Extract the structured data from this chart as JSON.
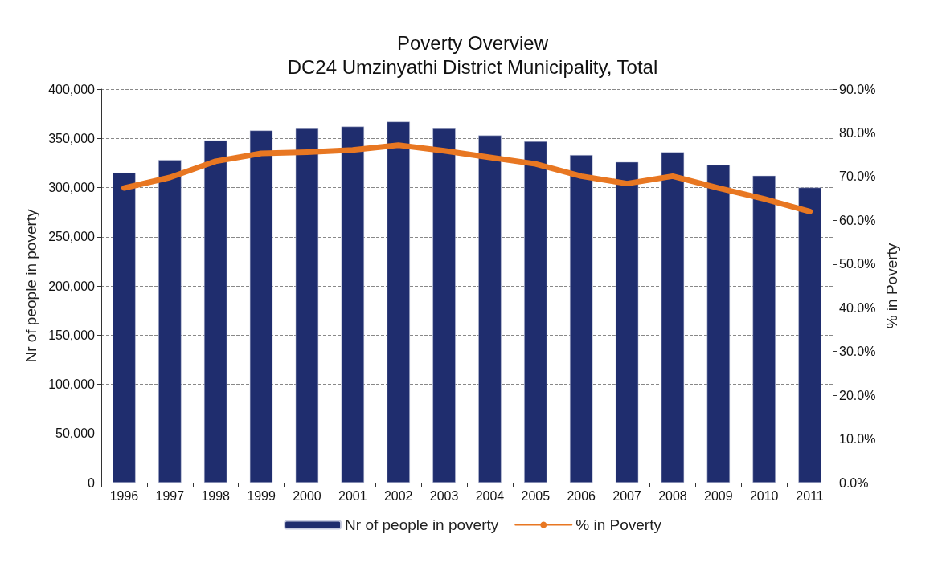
{
  "chart_data": {
    "type": "bar",
    "title": "Poverty Overview",
    "subtitle": "DC24 Umzinyathi District Municipality, Total",
    "ylabel": "Nr of people in poverty",
    "y2label": "% in Poverty",
    "categories": [
      "1996",
      "1997",
      "1998",
      "1999",
      "2000",
      "2001",
      "2002",
      "2003",
      "2004",
      "2005",
      "2006",
      "2007",
      "2008",
      "2009",
      "2010",
      "2011"
    ],
    "series": [
      {
        "name": "Nr of people in poverty",
        "color": "#1f2d6e",
        "values": [
          315000,
          328000,
          348000,
          358000,
          360000,
          362000,
          367000,
          360000,
          353000,
          347000,
          333000,
          326000,
          336000,
          323000,
          312000,
          300000
        ]
      },
      {
        "name": "% in Poverty",
        "type": "line",
        "axis": "y2",
        "color": "#e87722",
        "values": [
          67.4,
          69.8,
          73.5,
          75.3,
          75.6,
          76.1,
          77.2,
          75.9,
          74.4,
          72.9,
          70.1,
          68.4,
          70.1,
          67.4,
          64.9,
          62.0
        ]
      }
    ],
    "ylim": [
      0,
      400000
    ],
    "yticks": [
      {
        "value": 0,
        "label": "0"
      },
      {
        "value": 50000,
        "label": "50,000"
      },
      {
        "value": 100000,
        "label": "100,000"
      },
      {
        "value": 150000,
        "label": "150,000"
      },
      {
        "value": 200000,
        "label": "200,000"
      },
      {
        "value": 250000,
        "label": "250,000"
      },
      {
        "value": 300000,
        "label": "300,000"
      },
      {
        "value": 350000,
        "label": "350,000"
      },
      {
        "value": 400000,
        "label": "400,000"
      }
    ],
    "y2lim": [
      0,
      90
    ],
    "y2ticks": [
      {
        "value": 0,
        "label": "0.0%"
      },
      {
        "value": 10,
        "label": "10.0%"
      },
      {
        "value": 20,
        "label": "20.0%"
      },
      {
        "value": 30,
        "label": "30.0%"
      },
      {
        "value": 40,
        "label": "40.0%"
      },
      {
        "value": 50,
        "label": "50.0%"
      },
      {
        "value": 60,
        "label": "60.0%"
      },
      {
        "value": 70,
        "label": "70.0%"
      },
      {
        "value": 80,
        "label": "80.0%"
      },
      {
        "value": 90,
        "label": "90.0%"
      }
    ],
    "grid": "y",
    "legend": "bottom",
    "marker": "none",
    "line_style": "solid"
  }
}
